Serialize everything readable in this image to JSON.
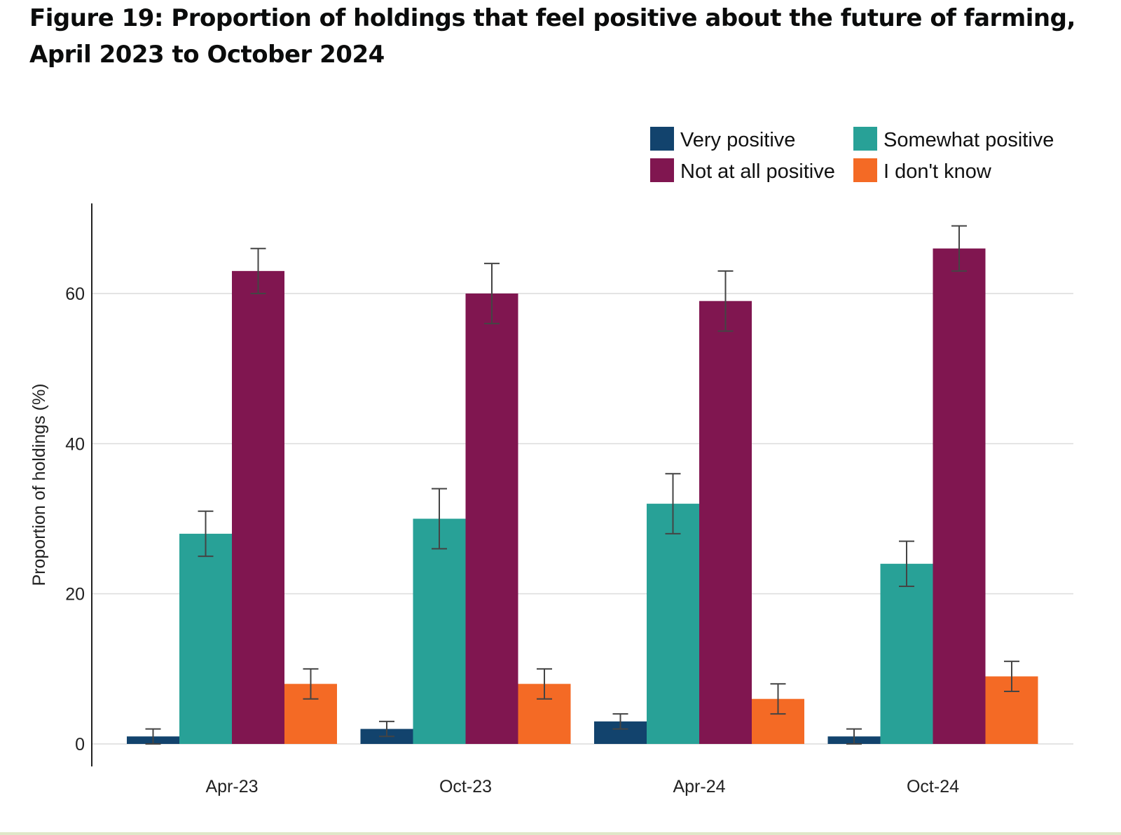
{
  "figure": {
    "title": "Figure 19: Proportion of holdings that feel positive about the future of farming, April 2023 to October 2024"
  },
  "chart_data": {
    "type": "bar",
    "title": "Figure 19: Proportion of holdings that feel positive about the future of farming, April 2023 to October 2024",
    "xlabel": "",
    "ylabel": "Proportion of holdings (%)",
    "ylim": [
      -3,
      72
    ],
    "yticks": [
      0,
      20,
      40,
      60
    ],
    "grid": true,
    "legend_position": "top-right",
    "categories": [
      "Apr-23",
      "Oct-23",
      "Apr-24",
      "Oct-24"
    ],
    "series": [
      {
        "name": "Very positive",
        "color": "#12436d",
        "values": [
          1,
          2,
          3,
          1
        ],
        "error_low": [
          0,
          1,
          2,
          0
        ],
        "error_high": [
          2,
          3,
          4,
          2
        ]
      },
      {
        "name": "Somewhat positive",
        "color": "#28a197",
        "values": [
          28,
          30,
          32,
          24
        ],
        "error_low": [
          25,
          26,
          28,
          21
        ],
        "error_high": [
          31,
          34,
          36,
          27
        ]
      },
      {
        "name": "Not at all positive",
        "color": "#801650",
        "values": [
          63,
          60,
          59,
          66
        ],
        "error_low": [
          60,
          56,
          55,
          63
        ],
        "error_high": [
          66,
          64,
          63,
          69
        ]
      },
      {
        "name": "I don't know",
        "color": "#f46a25",
        "values": [
          8,
          8,
          6,
          9
        ],
        "error_low": [
          6,
          6,
          4,
          7
        ],
        "error_high": [
          10,
          10,
          8,
          11
        ]
      }
    ]
  }
}
